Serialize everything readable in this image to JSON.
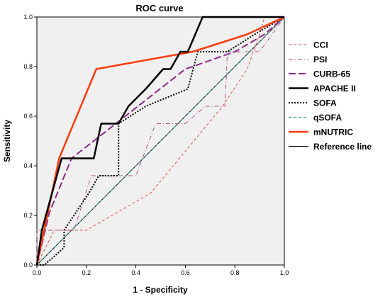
{
  "chart_data": {
    "type": "line",
    "title": "ROC curve",
    "xlabel": "1 - Specificity",
    "ylabel": "Sensitivity",
    "xlim": [
      0,
      1
    ],
    "ylim": [
      0,
      1
    ],
    "x_ticks": [
      "0.0",
      "0.2",
      "0.4",
      "0.6",
      "0.8",
      "1.0"
    ],
    "y_ticks": [
      "0.0",
      "0.2",
      "0.4",
      "0.6",
      "0.8",
      "1.0"
    ],
    "grid": false,
    "legend_position": "right",
    "series": [
      {
        "name": "CCI",
        "color": "#e8504a",
        "style": "dashed",
        "width": 1,
        "points": [
          [
            0,
            0
          ],
          [
            0.07,
            0.14
          ],
          [
            0.2,
            0.14
          ],
          [
            0.46,
            0.29
          ],
          [
            0.75,
            0.64
          ],
          [
            0.85,
            0.79
          ],
          [
            0.9,
            0.93
          ],
          [
            0.92,
            1.0
          ],
          [
            1,
            1
          ]
        ]
      },
      {
        "name": "PSI",
        "color": "#b0508a",
        "style": "dashdot",
        "width": 1,
        "points": [
          [
            0,
            0
          ],
          [
            0,
            0.14
          ],
          [
            0.15,
            0.14
          ],
          [
            0.22,
            0.36
          ],
          [
            0.4,
            0.36
          ],
          [
            0.48,
            0.57
          ],
          [
            0.6,
            0.57
          ],
          [
            0.68,
            0.64
          ],
          [
            0.76,
            0.64
          ],
          [
            0.77,
            0.86
          ],
          [
            0.9,
            0.86
          ],
          [
            1,
            1
          ]
        ]
      },
      {
        "name": "CURB-65",
        "color": "#8a2a8a",
        "style": "longdash",
        "width": 2,
        "points": [
          [
            0,
            0
          ],
          [
            0.05,
            0.21
          ],
          [
            0.14,
            0.43
          ],
          [
            0.6,
            0.79
          ],
          [
            0.8,
            0.86
          ],
          [
            0.92,
            0.93
          ],
          [
            1,
            1
          ]
        ]
      },
      {
        "name": "APACHE II",
        "color": "#000000",
        "style": "solid",
        "width": 2.5,
        "points": [
          [
            0,
            0
          ],
          [
            0.02,
            0.14
          ],
          [
            0.1,
            0.43
          ],
          [
            0.23,
            0.43
          ],
          [
            0.26,
            0.57
          ],
          [
            0.33,
            0.57
          ],
          [
            0.37,
            0.64
          ],
          [
            0.44,
            0.71
          ],
          [
            0.51,
            0.79
          ],
          [
            0.54,
            0.79
          ],
          [
            0.58,
            0.86
          ],
          [
            0.61,
            0.86
          ],
          [
            0.67,
            1.0
          ],
          [
            1,
            1
          ]
        ]
      },
      {
        "name": "SOFA",
        "color": "#000000",
        "style": "dotted",
        "width": 2,
        "points": [
          [
            0,
            0
          ],
          [
            0.03,
            0
          ],
          [
            0.11,
            0.07
          ],
          [
            0.11,
            0.14
          ],
          [
            0.21,
            0.29
          ],
          [
            0.25,
            0.36
          ],
          [
            0.33,
            0.36
          ],
          [
            0.33,
            0.57
          ],
          [
            0.44,
            0.64
          ],
          [
            0.61,
            0.71
          ],
          [
            0.65,
            0.86
          ],
          [
            0.77,
            0.86
          ],
          [
            0.88,
            0.93
          ],
          [
            1,
            1
          ]
        ]
      },
      {
        "name": "qSOFA",
        "color": "#2aa08a",
        "style": "dashed",
        "width": 1,
        "points": [
          [
            0,
            0
          ],
          [
            1,
            1
          ]
        ]
      },
      {
        "name": "mNUTRIC",
        "color": "#ff3a0a",
        "style": "solid",
        "width": 2.5,
        "points": [
          [
            0,
            0
          ],
          [
            0.09,
            0.43
          ],
          [
            0.24,
            0.79
          ],
          [
            0.63,
            0.86
          ],
          [
            0.85,
            0.93
          ],
          [
            1,
            1
          ]
        ]
      },
      {
        "name": "Reference line",
        "color": "#000000",
        "style": "solid",
        "width": 1,
        "points": [
          [
            0,
            0
          ],
          [
            1,
            1
          ]
        ]
      }
    ]
  }
}
